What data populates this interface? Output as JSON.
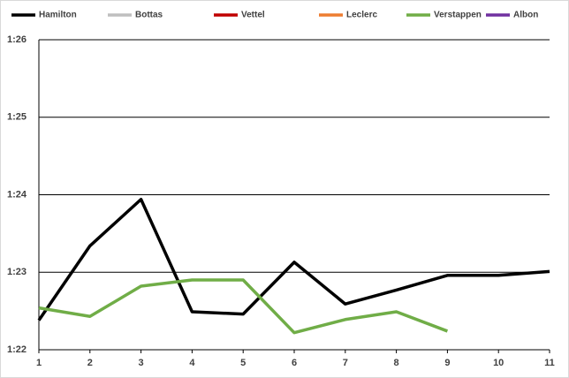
{
  "chart_data": {
    "type": "line",
    "x": [
      1,
      2,
      3,
      4,
      5,
      6,
      7,
      8,
      9,
      10,
      11
    ],
    "series": [
      {
        "name": "Hamilton",
        "color": "#000000",
        "values": [
          82.38,
          83.34,
          83.94,
          82.49,
          82.46,
          83.13,
          82.59,
          82.77,
          82.96,
          82.96,
          83.01
        ]
      },
      {
        "name": "Bottas",
        "color": "#bfbfbf",
        "values": [
          null,
          null,
          null,
          null,
          null,
          null,
          null,
          null,
          null,
          null,
          null
        ]
      },
      {
        "name": "Vettel",
        "color": "#c00000",
        "values": [
          null,
          null,
          null,
          null,
          null,
          null,
          null,
          null,
          null,
          null,
          null
        ]
      },
      {
        "name": "Leclerc",
        "color": "#ed7d31",
        "values": [
          null,
          null,
          null,
          null,
          null,
          null,
          null,
          null,
          null,
          null,
          null
        ]
      },
      {
        "name": "Verstappen",
        "color": "#70ad47",
        "values": [
          82.54,
          82.43,
          82.82,
          82.9,
          82.9,
          82.22,
          82.39,
          82.49,
          82.24,
          null,
          null
        ]
      },
      {
        "name": "Albon",
        "color": "#7030a0",
        "values": [
          null,
          null,
          null,
          null,
          null,
          null,
          null,
          null,
          null,
          null,
          null
        ]
      }
    ],
    "xlim": [
      1,
      11
    ],
    "xticks": [
      1,
      2,
      3,
      4,
      5,
      6,
      7,
      8,
      9,
      10,
      11
    ],
    "ylim": [
      82,
      86
    ],
    "yticks": [
      {
        "value": 82,
        "label": "1:22"
      },
      {
        "value": 83,
        "label": "1:23"
      },
      {
        "value": 84,
        "label": "1:24"
      },
      {
        "value": 85,
        "label": "1:25"
      },
      {
        "value": 86,
        "label": "1:26"
      }
    ],
    "grid": true,
    "legend": "top"
  }
}
